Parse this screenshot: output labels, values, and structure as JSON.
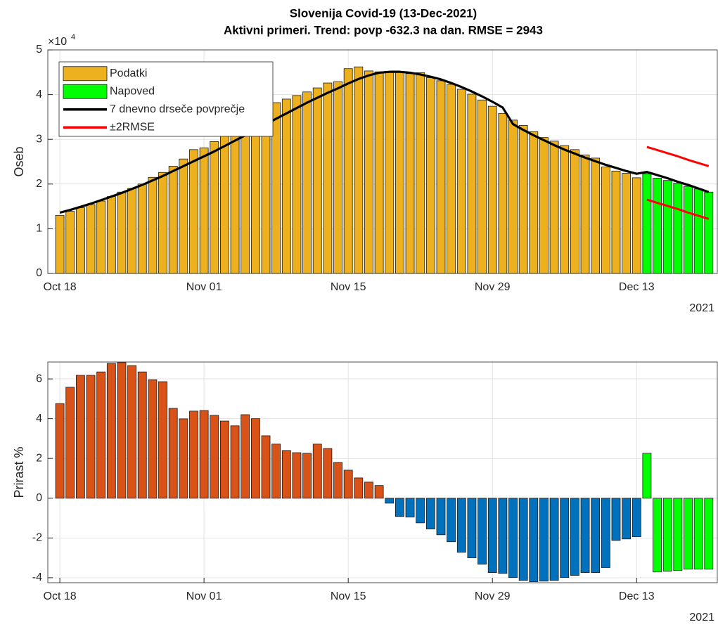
{
  "chart_data": [
    {
      "type": "bar",
      "title": "Slovenija Covid-19 (13-Dec-2021)",
      "subtitle": "Aktivni primeri. Trend: povp -632.3 na dan. RMSE = 2943",
      "y_label": "Oseb",
      "y_multiplier_label": "×10",
      "y_multiplier_exponent": "4",
      "x_year_label": "2021",
      "legend": "northwest",
      "grid": true,
      "xlim": [
        "2021-10-16T20:00:00Z",
        "2021-12-20T20:00:00Z"
      ],
      "xticks": [
        {
          "value": "2021-10-18",
          "label": "Oct 18"
        },
        {
          "value": "2021-11-01",
          "label": "Nov 01"
        },
        {
          "value": "2021-11-15",
          "label": "Nov 15"
        },
        {
          "value": "2021-11-29",
          "label": "Nov 29"
        },
        {
          "value": "2021-12-13",
          "label": "Dec 13"
        }
      ],
      "ylim": [
        0,
        50000
      ],
      "yticks": [
        0,
        {
          "value": 10000,
          "label": "1"
        },
        {
          "value": 20000,
          "label": "2"
        },
        {
          "value": 30000,
          "label": "3"
        },
        {
          "value": 40000,
          "label": "4"
        },
        {
          "value": 50000,
          "label": "5"
        }
      ],
      "x": [
        "2021-10-18",
        "2021-10-19",
        "2021-10-20",
        "2021-10-21",
        "2021-10-22",
        "2021-10-23",
        "2021-10-24",
        "2021-10-25",
        "2021-10-26",
        "2021-10-27",
        "2021-10-28",
        "2021-10-29",
        "2021-10-30",
        "2021-10-31",
        "2021-11-01",
        "2021-11-02",
        "2021-11-03",
        "2021-11-04",
        "2021-11-05",
        "2021-11-06",
        "2021-11-07",
        "2021-11-08",
        "2021-11-09",
        "2021-11-10",
        "2021-11-11",
        "2021-11-12",
        "2021-11-13",
        "2021-11-14",
        "2021-11-15",
        "2021-11-16",
        "2021-11-17",
        "2021-11-18",
        "2021-11-19",
        "2021-11-20",
        "2021-11-21",
        "2021-11-22",
        "2021-11-23",
        "2021-11-24",
        "2021-11-25",
        "2021-11-26",
        "2021-11-27",
        "2021-11-28",
        "2021-11-29",
        "2021-11-30",
        "2021-12-01",
        "2021-12-02",
        "2021-12-03",
        "2021-12-04",
        "2021-12-05",
        "2021-12-06",
        "2021-12-07",
        "2021-12-08",
        "2021-12-09",
        "2021-12-10",
        "2021-12-11",
        "2021-12-12",
        "2021-12-13",
        "2021-12-14",
        "2021-12-15",
        "2021-12-16",
        "2021-12-17",
        "2021-12-18",
        "2021-12-19",
        "2021-12-20"
      ],
      "series": [
        {
          "name": "Podatki",
          "kind": "bar",
          "color": "#EDB120",
          "values": [
            13000,
            13900,
            14700,
            15400,
            16200,
            17200,
            18200,
            19000,
            20000,
            21500,
            22600,
            24000,
            25600,
            27700,
            28100,
            29500,
            31300,
            32500,
            33900,
            35200,
            37300,
            38200,
            39000,
            39800,
            40600,
            41500,
            42600,
            42900,
            45800,
            46200,
            45300,
            45100,
            45200,
            45000,
            44700,
            44900,
            43800,
            43100,
            42300,
            41200,
            40100,
            38800,
            37400,
            35800,
            34300,
            33100,
            31700,
            30400,
            29600,
            28600,
            27700,
            26500,
            25800,
            23800,
            22900,
            22400,
            21400,
            null,
            null,
            null,
            null,
            null,
            null,
            null
          ]
        },
        {
          "name": "Napoved",
          "kind": "bar",
          "color": "#00FF00",
          "values": [
            null,
            null,
            null,
            null,
            null,
            null,
            null,
            null,
            null,
            null,
            null,
            null,
            null,
            null,
            null,
            null,
            null,
            null,
            null,
            null,
            null,
            null,
            null,
            null,
            null,
            null,
            null,
            null,
            null,
            null,
            null,
            null,
            null,
            null,
            null,
            null,
            null,
            null,
            null,
            null,
            null,
            null,
            null,
            null,
            null,
            null,
            null,
            null,
            null,
            null,
            null,
            null,
            null,
            null,
            null,
            null,
            null,
            22300,
            21300,
            20800,
            20200,
            19500,
            18900,
            18200
          ]
        },
        {
          "name": "7 dnevno drseče povprečje",
          "kind": "line",
          "color": "#000000",
          "values": [
            13600,
            14200,
            14900,
            15600,
            16400,
            17200,
            18000,
            18900,
            19800,
            20800,
            21800,
            22900,
            24000,
            25100,
            26200,
            27300,
            28500,
            29700,
            30900,
            32100,
            33400,
            34600,
            35800,
            37000,
            38200,
            39300,
            40400,
            41400,
            42500,
            43500,
            44300,
            44900,
            45100,
            45100,
            44900,
            44500,
            44000,
            43400,
            42600,
            41700,
            40700,
            39600,
            38400,
            37100,
            33400,
            32100,
            30900,
            29800,
            28700,
            27700,
            26800,
            25900,
            25100,
            24300,
            23600,
            22900,
            22300,
            22700,
            22000,
            21300,
            20500,
            19800,
            19000,
            18200
          ]
        },
        {
          "name": "±2RMSE",
          "kind": "band",
          "color": "#FF0000",
          "values": [
            null,
            null,
            null,
            null,
            null,
            null,
            null,
            null,
            null,
            null,
            null,
            null,
            null,
            null,
            null,
            null,
            null,
            null,
            null,
            null,
            null,
            null,
            null,
            null,
            null,
            null,
            null,
            null,
            null,
            null,
            null,
            null,
            null,
            null,
            null,
            null,
            null,
            null,
            null,
            null,
            null,
            null,
            null,
            null,
            null,
            null,
            null,
            null,
            null,
            null,
            null,
            null,
            null,
            null,
            null,
            null,
            null,
            28300,
            27600,
            26900,
            26200,
            25400,
            24700,
            24000
          ],
          "lower": [
            null,
            null,
            null,
            null,
            null,
            null,
            null,
            null,
            null,
            null,
            null,
            null,
            null,
            null,
            null,
            null,
            null,
            null,
            null,
            null,
            null,
            null,
            null,
            null,
            null,
            null,
            null,
            null,
            null,
            null,
            null,
            null,
            null,
            null,
            null,
            null,
            null,
            null,
            null,
            null,
            null,
            null,
            null,
            null,
            null,
            null,
            null,
            null,
            null,
            null,
            null,
            null,
            null,
            null,
            null,
            null,
            null,
            16500,
            15800,
            15100,
            14400,
            13600,
            12900,
            12200
          ]
        }
      ]
    },
    {
      "type": "bar",
      "y_label": "Prirast %",
      "x_year_label": "2021",
      "grid": true,
      "xlim": [
        "2021-10-16T20:00:00Z",
        "2021-12-20T20:00:00Z"
      ],
      "xticks": [
        {
          "value": "2021-10-18",
          "label": "Oct 18"
        },
        {
          "value": "2021-11-01",
          "label": "Nov 01"
        },
        {
          "value": "2021-11-15",
          "label": "Nov 15"
        },
        {
          "value": "2021-11-29",
          "label": "Nov 29"
        },
        {
          "value": "2021-12-13",
          "label": "Dec 13"
        }
      ],
      "ylim": [
        -4.25,
        6.85
      ],
      "yticks": [
        -4,
        -2,
        0,
        2,
        4,
        6
      ],
      "x": [
        "2021-10-18",
        "2021-10-19",
        "2021-10-20",
        "2021-10-21",
        "2021-10-22",
        "2021-10-23",
        "2021-10-24",
        "2021-10-25",
        "2021-10-26",
        "2021-10-27",
        "2021-10-28",
        "2021-10-29",
        "2021-10-30",
        "2021-10-31",
        "2021-11-01",
        "2021-11-02",
        "2021-11-03",
        "2021-11-04",
        "2021-11-05",
        "2021-11-06",
        "2021-11-07",
        "2021-11-08",
        "2021-11-09",
        "2021-11-10",
        "2021-11-11",
        "2021-11-12",
        "2021-11-13",
        "2021-11-14",
        "2021-11-15",
        "2021-11-16",
        "2021-11-17",
        "2021-11-18",
        "2021-11-19",
        "2021-11-20",
        "2021-11-21",
        "2021-11-22",
        "2021-11-23",
        "2021-11-24",
        "2021-11-25",
        "2021-11-26",
        "2021-11-27",
        "2021-11-28",
        "2021-11-29",
        "2021-11-30",
        "2021-12-01",
        "2021-12-02",
        "2021-12-03",
        "2021-12-04",
        "2021-12-05",
        "2021-12-06",
        "2021-12-07",
        "2021-12-08",
        "2021-12-09",
        "2021-12-10",
        "2021-12-11",
        "2021-12-12",
        "2021-12-13",
        "2021-12-14",
        "2021-12-15",
        "2021-12-16",
        "2021-12-17",
        "2021-12-18",
        "2021-12-19",
        "2021-12-20"
      ],
      "series": [
        {
          "kind": "bar",
          "color": "#D95319",
          "values": [
            4.76,
            5.58,
            6.18,
            6.18,
            6.35,
            6.78,
            6.82,
            6.67,
            6.35,
            5.96,
            5.86,
            4.52,
            3.99,
            4.38,
            4.41,
            4.17,
            3.88,
            3.64,
            4.2,
            4.0,
            3.14,
            2.72,
            2.4,
            2.29,
            2.26,
            2.72,
            2.5,
            1.8,
            1.41,
            1.02,
            0.81,
            0.64,
            null,
            null,
            null,
            null,
            null,
            null,
            null,
            null,
            null,
            null,
            null,
            null,
            null,
            null,
            null,
            null,
            null,
            null,
            null,
            null,
            null,
            null,
            null,
            null,
            null,
            null,
            null,
            null,
            null,
            null,
            null,
            null
          ]
        },
        {
          "kind": "bar",
          "color": "#0072BD",
          "values": [
            null,
            null,
            null,
            null,
            null,
            null,
            null,
            null,
            null,
            null,
            null,
            null,
            null,
            null,
            null,
            null,
            null,
            null,
            null,
            null,
            null,
            null,
            null,
            null,
            null,
            null,
            null,
            null,
            null,
            null,
            null,
            null,
            -0.25,
            -0.92,
            -0.95,
            -1.24,
            -1.55,
            -1.84,
            -2.19,
            -2.72,
            -3.0,
            -3.32,
            -3.74,
            -3.78,
            -3.99,
            -4.13,
            -4.2,
            -4.17,
            -4.13,
            -3.99,
            -3.88,
            -3.74,
            -3.74,
            -3.49,
            -2.12,
            -2.05,
            -1.94,
            null,
            null,
            null,
            null,
            null,
            null,
            null
          ]
        },
        {
          "kind": "bar",
          "color": "#00FF00",
          "values": [
            null,
            null,
            null,
            null,
            null,
            null,
            null,
            null,
            null,
            null,
            null,
            null,
            null,
            null,
            null,
            null,
            null,
            null,
            null,
            null,
            null,
            null,
            null,
            null,
            null,
            null,
            null,
            null,
            null,
            null,
            null,
            null,
            null,
            null,
            null,
            null,
            null,
            null,
            null,
            null,
            null,
            null,
            null,
            null,
            null,
            null,
            null,
            null,
            null,
            null,
            null,
            null,
            null,
            null,
            null,
            null,
            null,
            2.26,
            -3.71,
            -3.67,
            -3.64,
            -3.57,
            -3.57,
            -3.57
          ]
        }
      ]
    }
  ]
}
